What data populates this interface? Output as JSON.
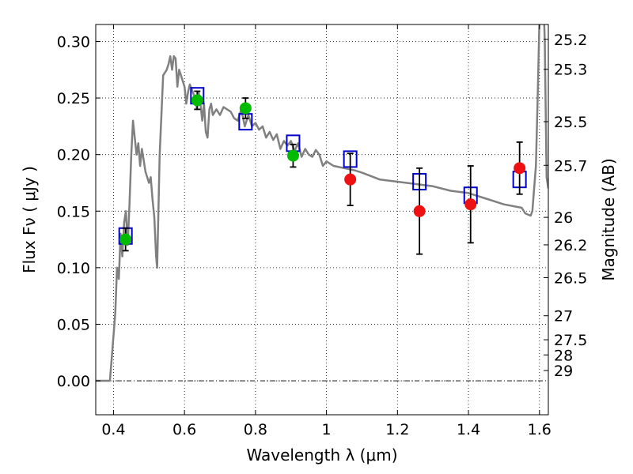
{
  "chart_data": {
    "type": "scatter",
    "xlabel": "Wavelength  λ (μm)",
    "ylabel": "Flux  Fν  ( μJy )",
    "ylabel_right": "Magnitude (AB)",
    "xlim": [
      0.35,
      1.625
    ],
    "ylim": [
      -0.03,
      0.315
    ],
    "grid": true,
    "xticks": [
      {
        "value": 0.4,
        "label": "0.4"
      },
      {
        "value": 0.6,
        "label": "0.6"
      },
      {
        "value": 0.8,
        "label": "0.8"
      },
      {
        "value": 1.0,
        "label": "1"
      },
      {
        "value": 1.2,
        "label": "1.2"
      },
      {
        "value": 1.4,
        "label": "1.4"
      },
      {
        "value": 1.6,
        "label": "1.6"
      }
    ],
    "yticks": [
      {
        "value": 0.0,
        "label": "0.00"
      },
      {
        "value": 0.05,
        "label": "0.05"
      },
      {
        "value": 0.1,
        "label": "0.10"
      },
      {
        "value": 0.15,
        "label": "0.15"
      },
      {
        "value": 0.2,
        "label": "0.20"
      },
      {
        "value": 0.25,
        "label": "0.25"
      },
      {
        "value": 0.3,
        "label": "0.30"
      }
    ],
    "right_ticks": [
      {
        "flux": 0.3019,
        "label": "25.2"
      },
      {
        "flux": 0.2754,
        "label": "25.3"
      },
      {
        "flux": 0.2291,
        "label": "25.5"
      },
      {
        "flux": 0.1905,
        "label": "25.7"
      },
      {
        "flux": 0.1445,
        "label": "26"
      },
      {
        "flux": 0.1202,
        "label": "26.2"
      },
      {
        "flux": 0.0912,
        "label": "26.5"
      },
      {
        "flux": 0.0575,
        "label": "27"
      },
      {
        "flux": 0.0363,
        "label": "27.5"
      },
      {
        "flux": 0.0229,
        "label": "28"
      },
      {
        "flux": 0.0091,
        "label": "29"
      }
    ],
    "series": [
      {
        "kind": "line",
        "color": "#808080",
        "points": [
          [
            0.35,
            0.0
          ],
          [
            0.39,
            0.0
          ],
          [
            0.395,
            0.02
          ],
          [
            0.405,
            0.06
          ],
          [
            0.41,
            0.1
          ],
          [
            0.415,
            0.09
          ],
          [
            0.42,
            0.13
          ],
          [
            0.425,
            0.11
          ],
          [
            0.43,
            0.14
          ],
          [
            0.435,
            0.15
          ],
          [
            0.44,
            0.12
          ],
          [
            0.445,
            0.155
          ],
          [
            0.45,
            0.2
          ],
          [
            0.455,
            0.23
          ],
          [
            0.46,
            0.215
          ],
          [
            0.465,
            0.2
          ],
          [
            0.47,
            0.21
          ],
          [
            0.475,
            0.19
          ],
          [
            0.48,
            0.205
          ],
          [
            0.485,
            0.195
          ],
          [
            0.49,
            0.185
          ],
          [
            0.5,
            0.175
          ],
          [
            0.505,
            0.18
          ],
          [
            0.51,
            0.16
          ],
          [
            0.515,
            0.145
          ],
          [
            0.52,
            0.11
          ],
          [
            0.523,
            0.1
          ],
          [
            0.53,
            0.2
          ],
          [
            0.54,
            0.27
          ],
          [
            0.55,
            0.275
          ],
          [
            0.555,
            0.28
          ],
          [
            0.56,
            0.287
          ],
          [
            0.565,
            0.275
          ],
          [
            0.57,
            0.287
          ],
          [
            0.575,
            0.285
          ],
          [
            0.58,
            0.26
          ],
          [
            0.585,
            0.275
          ],
          [
            0.59,
            0.27
          ],
          [
            0.6,
            0.26
          ],
          [
            0.605,
            0.245
          ],
          [
            0.61,
            0.255
          ],
          [
            0.615,
            0.262
          ],
          [
            0.62,
            0.258
          ],
          [
            0.63,
            0.25
          ],
          [
            0.635,
            0.24
          ],
          [
            0.64,
            0.255
          ],
          [
            0.645,
            0.245
          ],
          [
            0.65,
            0.23
          ],
          [
            0.655,
            0.245
          ],
          [
            0.66,
            0.22
          ],
          [
            0.665,
            0.215
          ],
          [
            0.67,
            0.24
          ],
          [
            0.675,
            0.245
          ],
          [
            0.68,
            0.235
          ],
          [
            0.69,
            0.24
          ],
          [
            0.7,
            0.235
          ],
          [
            0.71,
            0.242
          ],
          [
            0.72,
            0.24
          ],
          [
            0.73,
            0.238
          ],
          [
            0.74,
            0.232
          ],
          [
            0.75,
            0.23
          ],
          [
            0.76,
            0.24
          ],
          [
            0.77,
            0.225
          ],
          [
            0.78,
            0.235
          ],
          [
            0.79,
            0.225
          ],
          [
            0.8,
            0.228
          ],
          [
            0.81,
            0.222
          ],
          [
            0.82,
            0.225
          ],
          [
            0.83,
            0.215
          ],
          [
            0.84,
            0.22
          ],
          [
            0.85,
            0.213
          ],
          [
            0.86,
            0.218
          ],
          [
            0.87,
            0.205
          ],
          [
            0.88,
            0.212
          ],
          [
            0.89,
            0.208
          ],
          [
            0.9,
            0.212
          ],
          [
            0.91,
            0.203
          ],
          [
            0.92,
            0.21
          ],
          [
            0.93,
            0.198
          ],
          [
            0.94,
            0.205
          ],
          [
            0.95,
            0.2
          ],
          [
            0.96,
            0.198
          ],
          [
            0.97,
            0.204
          ],
          [
            0.98,
            0.2
          ],
          [
            0.99,
            0.19
          ],
          [
            1.0,
            0.194
          ],
          [
            1.02,
            0.19
          ],
          [
            1.05,
            0.188
          ],
          [
            1.08,
            0.186
          ],
          [
            1.1,
            0.184
          ],
          [
            1.15,
            0.178
          ],
          [
            1.2,
            0.176
          ],
          [
            1.25,
            0.174
          ],
          [
            1.3,
            0.172
          ],
          [
            1.35,
            0.168
          ],
          [
            1.4,
            0.166
          ],
          [
            1.45,
            0.161
          ],
          [
            1.5,
            0.156
          ],
          [
            1.55,
            0.153
          ],
          [
            1.56,
            0.148
          ],
          [
            1.575,
            0.146
          ],
          [
            1.58,
            0.15
          ],
          [
            1.59,
            0.19
          ],
          [
            1.595,
            0.25
          ],
          [
            1.6,
            0.32
          ],
          [
            1.61,
            0.35
          ],
          [
            1.615,
            0.3
          ],
          [
            1.62,
            0.18
          ],
          [
            1.625,
            0.17
          ]
        ]
      },
      {
        "kind": "markers",
        "marker": "square",
        "color": "#0000cc",
        "points": [
          [
            0.434,
            0.128
          ],
          [
            0.636,
            0.252
          ],
          [
            0.772,
            0.229
          ],
          [
            0.906,
            0.21
          ],
          [
            1.067,
            0.196
          ],
          [
            1.262,
            0.176
          ],
          [
            1.406,
            0.164
          ],
          [
            1.544,
            0.178
          ]
        ]
      },
      {
        "kind": "markers",
        "marker": "circle",
        "color": "#00bb00",
        "points": [
          {
            "x": 0.434,
            "y": 0.125,
            "err": 0.01
          },
          {
            "x": 0.636,
            "y": 0.248,
            "err": 0.008
          },
          {
            "x": 0.772,
            "y": 0.241,
            "err": 0.009
          },
          {
            "x": 0.906,
            "y": 0.199,
            "err": 0.01
          }
        ]
      },
      {
        "kind": "markers",
        "marker": "circle",
        "color": "#ee1111",
        "points": [
          {
            "x": 1.067,
            "y": 0.178,
            "err": 0.023
          },
          {
            "x": 1.262,
            "y": 0.15,
            "err": 0.038
          },
          {
            "x": 1.406,
            "y": 0.156,
            "err": 0.034
          },
          {
            "x": 1.544,
            "y": 0.188,
            "err": 0.023
          }
        ]
      }
    ]
  }
}
